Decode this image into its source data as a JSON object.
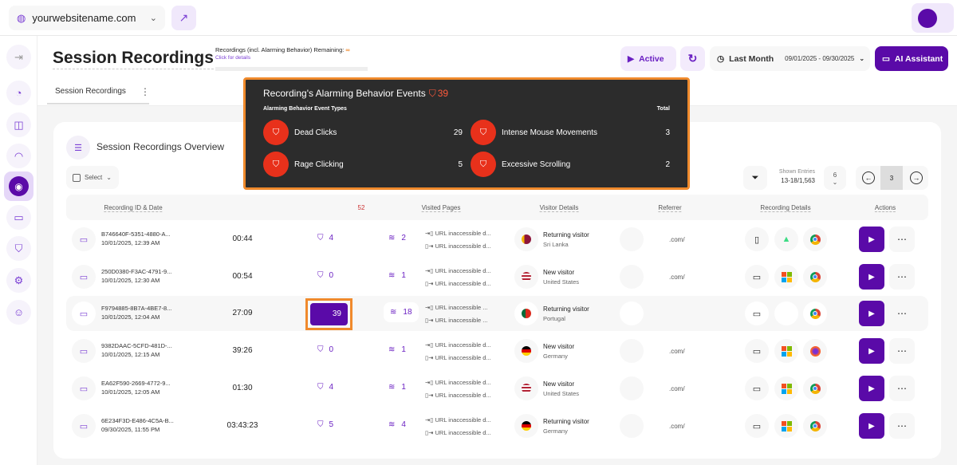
{
  "topbar": {
    "site": "yourwebsitename.com"
  },
  "header": {
    "title": "Session Recordings",
    "remaining_label": "Recordings (incl. Alarming Behavior) Remaining:",
    "remaining_value": "∞",
    "details_link": "Click for details",
    "tab": "Session Recordings",
    "active_label": "Active",
    "range_label": "Last Month",
    "range_dates": "09/01/2025 - 09/30/2025",
    "ai_label": "AI Assistant"
  },
  "overview": {
    "title": "Session Recordings Overview",
    "select_label": "Select",
    "shown_label": "Shown Entries",
    "shown_value": "13-18/1,563",
    "per_page": "6",
    "current_page": "3"
  },
  "columns": {
    "id": "Recording ID & Date",
    "alarm_total": "52",
    "pages": "Visited Pages",
    "visitor": "Visitor Details",
    "referrer": "Referrer",
    "details": "Recording Details",
    "actions": "Actions"
  },
  "rows": [
    {
      "id": "B746640F-5351-4880-A...",
      "date": "10/01/2025, 12:39 AM",
      "duration": "00:44",
      "alarms": "4",
      "pages": "2",
      "entry": "URL inaccessible d...",
      "exit": "URL inaccessible d...",
      "flag": "sri-lanka",
      "visitor": "Returning visitor",
      "country": "Sri Lanka",
      "referrer": ".com/",
      "device": "mobile",
      "os": "android",
      "browser": "chrome"
    },
    {
      "id": "250D0380-F3AC-4791-9...",
      "date": "10/01/2025, 12:30 AM",
      "duration": "00:54",
      "alarms": "0",
      "pages": "1",
      "entry": "URL inaccessible d...",
      "exit": "URL inaccessible d...",
      "flag": "usa",
      "visitor": "New visitor",
      "country": "United States",
      "referrer": ".com/",
      "device": "desktop",
      "os": "windows",
      "browser": "chrome"
    },
    {
      "id": "F9794885-8B7A-4BE7-8...",
      "date": "10/01/2025, 12:04 AM",
      "duration": "27:09",
      "alarms": "39",
      "pages": "18",
      "entry": "URL inaccessible ...",
      "exit": "URL inaccessible ...",
      "flag": "portugal",
      "visitor": "Returning visitor",
      "country": "Portugal",
      "referrer": "",
      "device": "desktop",
      "os": "apple",
      "browser": "chrome"
    },
    {
      "id": "9382DAAC-5CFD-481D-...",
      "date": "10/01/2025, 12:15 AM",
      "duration": "39:26",
      "alarms": "0",
      "pages": "1",
      "entry": "URL inaccessible d...",
      "exit": "URL inaccessible d...",
      "flag": "germany",
      "visitor": "New visitor",
      "country": "Germany",
      "referrer": ".com/",
      "device": "desktop",
      "os": "windows",
      "browser": "firefox"
    },
    {
      "id": "EA62F590-2669-4772-9...",
      "date": "10/01/2025, 12:05 AM",
      "duration": "01:30",
      "alarms": "4",
      "pages": "1",
      "entry": "URL inaccessible d...",
      "exit": "URL inaccessible d...",
      "flag": "usa",
      "visitor": "New visitor",
      "country": "United States",
      "referrer": ".com/",
      "device": "desktop",
      "os": "windows",
      "browser": "chrome"
    },
    {
      "id": "6E234F3D-E486-4C5A-B...",
      "date": "09/30/2025, 11:55 PM",
      "duration": "03:43:23",
      "alarms": "5",
      "pages": "4",
      "entry": "URL inaccessible d...",
      "exit": "URL inaccessible d...",
      "flag": "germany",
      "visitor": "Returning visitor",
      "country": "Germany",
      "referrer": ".com/",
      "device": "desktop",
      "os": "windows",
      "browser": "chrome"
    }
  ],
  "popup": {
    "title": "Recording's Alarming Behavior Events",
    "total": "39",
    "col_type": "Alarming Behavior Event Types",
    "col_total": "Total",
    "events": [
      {
        "label": "Dead Clicks",
        "count": "29"
      },
      {
        "label": "Intense Mouse Movements",
        "count": "3"
      },
      {
        "label": "Rage Clicking",
        "count": "5"
      },
      {
        "label": "Excessive Scrolling",
        "count": "2"
      }
    ]
  },
  "colors": {
    "accent": "#5a0aa8",
    "highlight": "#f08a2c",
    "alarm": "#e8311b"
  }
}
